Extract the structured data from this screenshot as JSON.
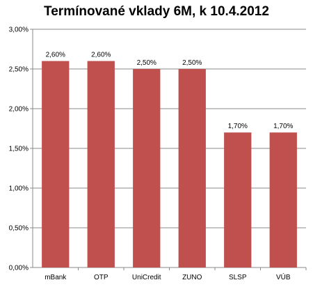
{
  "chart_data": {
    "type": "bar",
    "title": "Termínované vklady 6M, k 10.4.2012",
    "categories": [
      "mBank",
      "OTP",
      "UniCredit",
      "ZUNO",
      "SLSP",
      "VÚB"
    ],
    "values": [
      2.6,
      2.6,
      2.5,
      2.5,
      1.7,
      1.7
    ],
    "data_labels": [
      "2,60%",
      "2,60%",
      "2,50%",
      "2,50%",
      "1,70%",
      "1,70%"
    ],
    "ylim": [
      0,
      3
    ],
    "yticks": [
      0,
      0.5,
      1.0,
      1.5,
      2.0,
      2.5,
      3.0
    ],
    "ytick_labels": [
      "0,00%",
      "0,50%",
      "1,00%",
      "1,50%",
      "2,00%",
      "2,50%",
      "3,00%"
    ],
    "xlabel": "",
    "ylabel": "",
    "grid": true,
    "legend": "none",
    "bar_color": "#c0504d",
    "grid_color": "#888888"
  }
}
